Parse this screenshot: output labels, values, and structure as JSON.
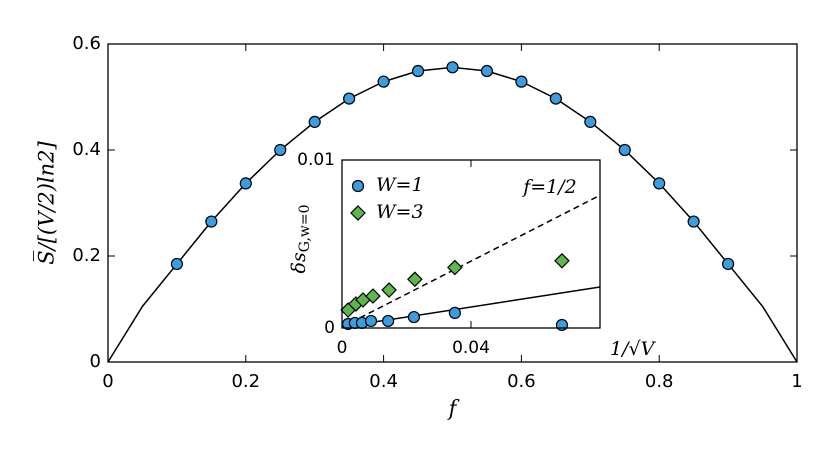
{
  "chart_data": [
    {
      "type": "scatter",
      "x_label": "f",
      "y_label": "S̅/[(V/2)ln2]",
      "xlim": [
        0,
        1
      ],
      "ylim": [
        0,
        0.6
      ],
      "xticks": [
        0,
        0.2,
        0.4,
        0.6,
        0.8,
        1
      ],
      "yticks": [
        0,
        0.2,
        0.4,
        0.6
      ],
      "series": [
        {
          "color": "#3a9de0",
          "marker": "circle",
          "x": [
            0.1,
            0.15,
            0.2,
            0.25,
            0.3,
            0.35,
            0.4,
            0.45,
            0.5,
            0.55,
            0.6,
            0.65,
            0.7,
            0.75,
            0.8,
            0.85,
            0.9
          ],
          "values": [
            0.185,
            0.265,
            0.337,
            0.4,
            0.453,
            0.497,
            0.529,
            0.549,
            0.556,
            0.549,
            0.529,
            0.497,
            0.453,
            0.4,
            0.337,
            0.265,
            0.185
          ]
        },
        {
          "color": "#000000",
          "marker": "none",
          "dash": false,
          "x": [
            0,
            0.05,
            0.1,
            0.15,
            0.2,
            0.25,
            0.3,
            0.35,
            0.4,
            0.45,
            0.5,
            0.55,
            0.6,
            0.65,
            0.7,
            0.75,
            0.8,
            0.85,
            0.9,
            0.95,
            1
          ],
          "values": [
            0,
            0.105,
            0.185,
            0.265,
            0.337,
            0.4,
            0.453,
            0.497,
            0.529,
            0.549,
            0.556,
            0.549,
            0.529,
            0.497,
            0.453,
            0.4,
            0.337,
            0.265,
            0.185,
            0.105,
            0
          ]
        }
      ]
    },
    {
      "type": "scatter",
      "x_label": "1/√V",
      "y_label": "δs",
      "y_label_sub": "G,w=0",
      "annotation": "f=1/2",
      "xlim": [
        0,
        0.08
      ],
      "ylim": [
        0,
        0.01
      ],
      "xticks": [
        0,
        0.04
      ],
      "yticks": [
        0,
        0.01
      ],
      "legend": "upper left",
      "series": [
        {
          "name": "W=1",
          "color": "#3a9de0",
          "marker": "circle",
          "x": [
            0.0019,
            0.004,
            0.0062,
            0.009,
            0.0143,
            0.0223,
            0.035,
            0.0682
          ],
          "values": [
            0.00024,
            0.0003,
            0.0003,
            0.00042,
            0.00042,
            0.00065,
            0.0009,
            0.00018
          ]
        },
        {
          "name": "W=3",
          "color": "#5cb84a",
          "marker": "diamond",
          "x": [
            0.0019,
            0.0043,
            0.0065,
            0.0096,
            0.0146,
            0.0226,
            0.035,
            0.0682
          ],
          "values": [
            0.00107,
            0.00143,
            0.00167,
            0.0019,
            0.00226,
            0.0029,
            0.0036,
            0.004
          ]
        },
        {
          "color": "#000000",
          "marker": "none",
          "dash": false,
          "x": [
            0,
            0.08
          ],
          "values": [
            6e-05,
            0.00244
          ]
        },
        {
          "color": "#000000",
          "marker": "none",
          "dash": true,
          "x": [
            0,
            0.08
          ],
          "values": [
            6e-05,
            0.0079
          ]
        }
      ]
    }
  ]
}
